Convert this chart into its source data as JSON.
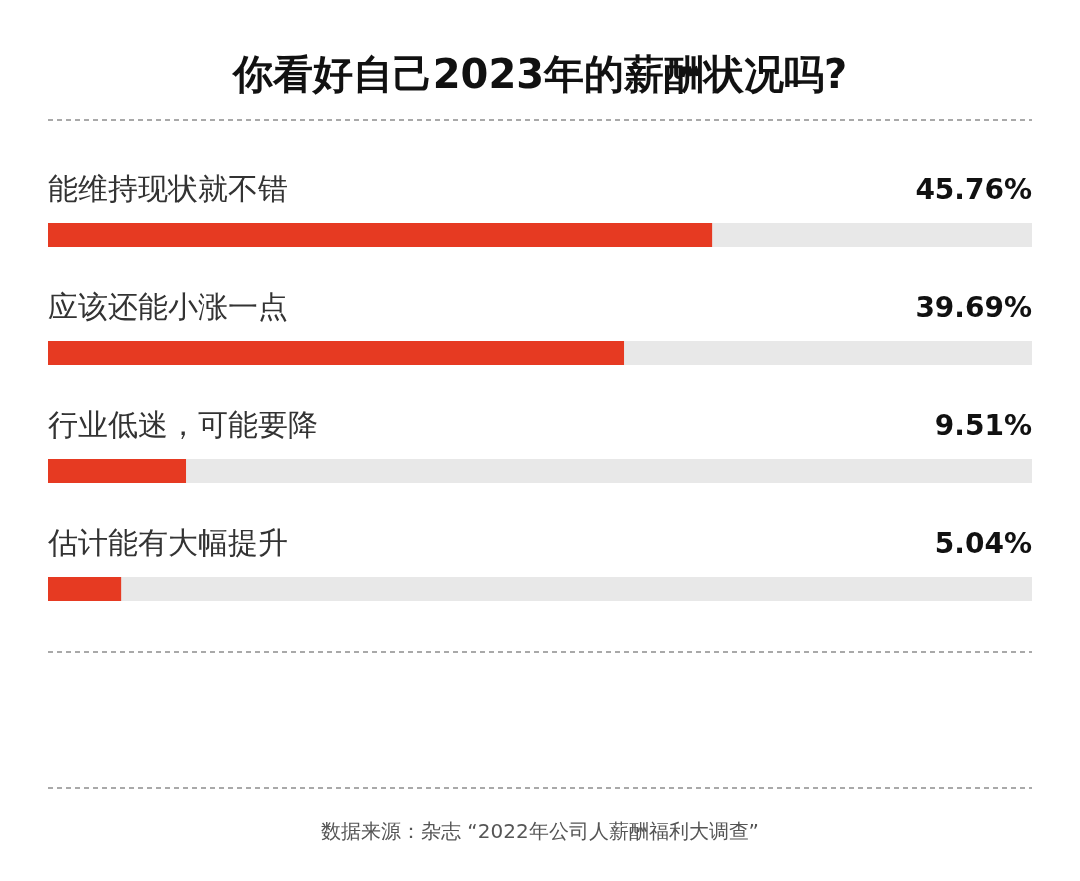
{
  "chart_data": {
    "type": "bar",
    "orientation": "horizontal",
    "title": "你看好自己2023年的薪酬状况吗?",
    "categories": [
      "能维持现状就不错",
      "应该还能小涨一点",
      "行业低迷，可能要降",
      "估计能有大幅提升"
    ],
    "values": [
      45.76,
      39.69,
      9.51,
      5.04
    ],
    "value_labels": [
      "45.76%",
      "39.69%",
      "9.51%",
      "5.04%"
    ],
    "color": "#e63a22",
    "xlim": [
      0,
      67.8
    ],
    "annotations": [
      "数据来源：杂志 “2022年公司人薪酬福利大调查”"
    ]
  }
}
